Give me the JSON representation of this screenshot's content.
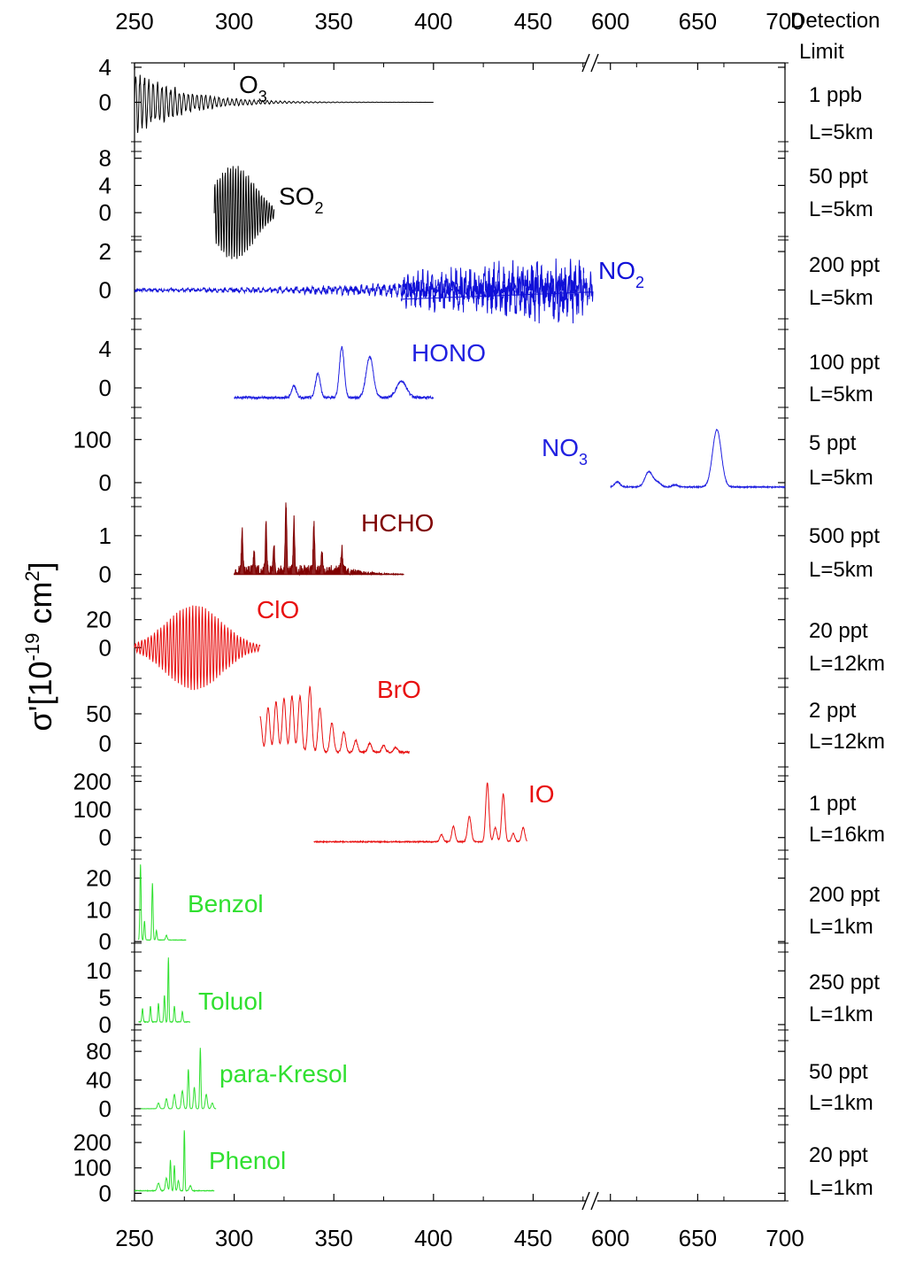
{
  "chart_data": {
    "type": "line",
    "title": "",
    "ylabel_main": "σ'[10",
    "ylabel_exp": "-19",
    "ylabel_unit": " cm",
    "ylabel_unit_exp": "2",
    "ylabel_close": "]",
    "detection_header": [
      "Detection",
      "Limit"
    ],
    "x_ticks_left": [
      "250",
      "300",
      "350",
      "400",
      "450"
    ],
    "x_ticks_right": [
      "600",
      "650",
      "700"
    ],
    "x_ranges": {
      "left": [
        250,
        480
      ],
      "right": [
        590,
        700
      ]
    },
    "axis_break_between": [
      480,
      590
    ],
    "panels": [
      {
        "name": "O",
        "sub": "3",
        "color": "#000000",
        "ticks": [
          "4",
          "0"
        ],
        "ylim": [
          -4.5,
          4.5
        ],
        "detection": [
          "1 ppb",
          "L=5km"
        ],
        "series": {
          "type": "noise",
          "x": [
            250,
            400
          ],
          "amp": 3.6,
          "decay": 0.045,
          "period": 2.2
        }
      },
      {
        "name": "SO",
        "sub": "2",
        "color": "#000000",
        "ticks": [
          "8",
          "4",
          "0"
        ],
        "ylim": [
          -3.5,
          9
        ],
        "detection": [
          "50 ppt",
          "L=5km"
        ],
        "series": {
          "type": "band",
          "x": [
            290,
            320
          ],
          "center": 300,
          "amp": 7,
          "width": 10,
          "period": 1.3
        }
      },
      {
        "name": "NO",
        "sub": "2",
        "color": "#1010d8",
        "ticks": [
          "2",
          "0"
        ],
        "ylim": [
          -1.5,
          2.6
        ],
        "detection": [
          "200 ppt",
          "L=5km"
        ],
        "series": {
          "type": "grow",
          "x": [
            250,
            585
          ],
          "amp_start": 0.08,
          "amp_end": 1.6,
          "period": 1.7
        }
      },
      {
        "name": "HONO",
        "sub": "",
        "color": "#2020e0",
        "ticks": [
          "4",
          "0"
        ],
        "ylim": [
          -2,
          6
        ],
        "detection": [
          "100 ppt",
          "L=5km"
        ],
        "series": {
          "type": "peaks",
          "x": [
            300,
            400
          ],
          "base": -1.0,
          "peaks": [
            [
              330,
              1.2,
              1.2
            ],
            [
              342,
              2.5,
              1.2
            ],
            [
              354,
              5.2,
              1.2
            ],
            [
              368,
              4.2,
              1.8
            ],
            [
              384,
              1.7,
              2.5
            ]
          ]
        }
      },
      {
        "name": "NO",
        "sub": "3",
        "color": "#2020e0",
        "ticks": [
          "100",
          "0"
        ],
        "ylim": [
          -35,
          150
        ],
        "detection": [
          "5 ppt",
          "L=5km"
        ],
        "series": {
          "type": "peaks",
          "x": [
            600,
            700
          ],
          "base": -10,
          "peaks": [
            [
              604,
              12,
              1.5
            ],
            [
              622,
              35,
              2.2
            ],
            [
              627,
              10,
              2.0
            ],
            [
              637,
              5,
              1.5
            ],
            [
              661,
              133,
              2.5
            ]
          ]
        }
      },
      {
        "name": "HCHO",
        "sub": "",
        "color": "#800000",
        "ticks": [
          "1",
          "0"
        ],
        "ylim": [
          -0.35,
          1.75
        ],
        "detection": [
          "500 ppt",
          "L=5km"
        ],
        "series": {
          "type": "comb",
          "x": [
            300,
            385
          ],
          "base": 0.0,
          "fill": true,
          "peaks": [
            [
              304,
              1.0
            ],
            [
              310,
              0.55
            ],
            [
              316,
              1.2
            ],
            [
              320,
              0.6
            ],
            [
              326,
              1.7
            ],
            [
              330,
              1.3
            ],
            [
              340,
              1.2
            ],
            [
              344,
              0.5
            ],
            [
              354,
              0.55
            ]
          ]
        }
      },
      {
        "name": "ClO",
        "sub": "",
        "color": "#e81010",
        "ticks": [
          "20",
          "0"
        ],
        "ylim": [
          -22,
          35
        ],
        "detection": [
          "20 ppt",
          "L=12km"
        ],
        "series": {
          "type": "band",
          "x": [
            250,
            313
          ],
          "center": 280,
          "amp": 30,
          "width": 14,
          "period": 1.6
        }
      },
      {
        "name": "BrO",
        "sub": "",
        "color": "#e81010",
        "ticks": [
          "50",
          "0"
        ],
        "ylim": [
          -40,
          95
        ],
        "detection": [
          "2 ppt",
          "L=12km"
        ],
        "series": {
          "type": "comb_osc",
          "x": [
            313,
            388
          ],
          "base": -15,
          "peaks": [
            [
              313,
              60
            ],
            [
              317,
              75
            ],
            [
              321,
              85
            ],
            [
              325,
              90
            ],
            [
              329,
              95
            ],
            [
              333,
              95
            ],
            [
              338,
              110
            ],
            [
              343,
              75
            ],
            [
              349,
              50
            ],
            [
              355,
              35
            ],
            [
              361,
              20
            ],
            [
              368,
              15
            ],
            [
              375,
              12
            ],
            [
              381,
              8
            ]
          ]
        }
      },
      {
        "name": "IO",
        "sub": "",
        "color": "#e81010",
        "ticks": [
          "200",
          "100",
          "0"
        ],
        "ylim": [
          -45,
          220
        ],
        "detection": [
          "1 ppt",
          "L=16km"
        ],
        "series": {
          "type": "peaks",
          "x": [
            340,
            447
          ],
          "base": -15,
          "peaks": [
            [
              404,
              25,
              0.8
            ],
            [
              410,
              55,
              0.8
            ],
            [
              418,
              90,
              0.9
            ],
            [
              427,
              210,
              0.8
            ],
            [
              431,
              50,
              0.8
            ],
            [
              435,
              170,
              0.8
            ],
            [
              440,
              30,
              0.8
            ],
            [
              445,
              50,
              0.8
            ]
          ]
        }
      },
      {
        "name": "Benzol",
        "sub": "",
        "color": "#30e030",
        "ticks": [
          "20",
          "10",
          "0"
        ],
        "ylim": [
          -0.5,
          26
        ],
        "detection": [
          "200 ppt",
          "L=1km"
        ],
        "series": {
          "type": "peaks",
          "x": [
            252,
            276
          ],
          "base": 0.5,
          "peaks": [
            [
              253,
              24,
              0.3
            ],
            [
              255,
              6,
              0.3
            ],
            [
              259,
              18,
              0.3
            ],
            [
              261,
              3,
              0.3
            ],
            [
              266,
              1.5,
              0.4
            ]
          ]
        }
      },
      {
        "name": "Toluol",
        "sub": "",
        "color": "#30e030",
        "ticks": [
          "10",
          "5",
          "0"
        ],
        "ylim": [
          -1,
          13.5
        ],
        "detection": [
          "250 ppt",
          "L=1km"
        ],
        "series": {
          "type": "peaks",
          "x": [
            252,
            278
          ],
          "base": 0.5,
          "peaks": [
            [
              254,
              2.5,
              0.3
            ],
            [
              258,
              3,
              0.3
            ],
            [
              262,
              3.5,
              0.3
            ],
            [
              265,
              5,
              0.3
            ],
            [
              267,
              12,
              0.25
            ],
            [
              270,
              3,
              0.3
            ],
            [
              274,
              2,
              0.3
            ]
          ]
        }
      },
      {
        "name": "para-Kresol",
        "sub": "",
        "color": "#30e030",
        "ticks": [
          "80",
          "40",
          "0"
        ],
        "ylim": [
          -10,
          95
        ],
        "detection": [
          "50 ppt",
          "L=1km"
        ],
        "series": {
          "type": "peaks",
          "x": [
            253,
            291
          ],
          "base": 0,
          "peaks": [
            [
              262,
              8,
              0.5
            ],
            [
              266,
              14,
              0.5
            ],
            [
              270,
              20,
              0.5
            ],
            [
              274,
              25,
              0.5
            ],
            [
              277,
              55,
              0.35
            ],
            [
              280,
              30,
              0.4
            ],
            [
              283,
              85,
              0.3
            ],
            [
              286,
              20,
              0.5
            ],
            [
              289,
              8,
              0.5
            ]
          ]
        }
      },
      {
        "name": "Phenol",
        "sub": "",
        "color": "#30e030",
        "ticks": [
          "200",
          "100",
          "0"
        ],
        "ylim": [
          -30,
          270
        ],
        "detection": [
          "20 ppt",
          "L=1km"
        ],
        "series": {
          "type": "peaks",
          "x": [
            250,
            290
          ],
          "base": 10,
          "peaks": [
            [
              262,
              30,
              0.6
            ],
            [
              266,
              50,
              0.5
            ],
            [
              268,
              120,
              0.3
            ],
            [
              270,
              100,
              0.3
            ],
            [
              272,
              40,
              0.4
            ],
            [
              275,
              240,
              0.25
            ],
            [
              278,
              20,
              0.5
            ]
          ]
        }
      }
    ]
  }
}
